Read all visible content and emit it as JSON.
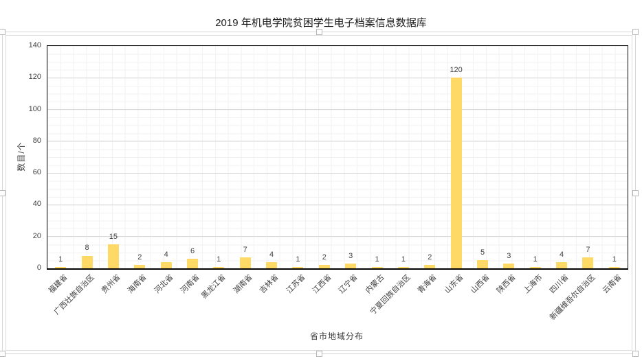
{
  "chart_data": {
    "type": "bar",
    "title": "2019 年机电学院贫困学生电子档案信息数据库",
    "xlabel": "省市地域分布",
    "ylabel": "数目/个",
    "categories": [
      "福建省",
      "广西壮族自治区",
      "贵州省",
      "海南省",
      "河北省",
      "河南省",
      "黑龙江省",
      "湖南省",
      "吉林省",
      "江苏省",
      "江西省",
      "辽宁省",
      "内蒙古",
      "宁夏回族自治区",
      "青海省",
      "山东省",
      "山西省",
      "陕西省",
      "上海市",
      "四川省",
      "新疆维吾尔自治区",
      "云南省"
    ],
    "values": [
      1,
      8,
      15,
      2,
      4,
      6,
      1,
      7,
      4,
      1,
      2,
      3,
      1,
      1,
      2,
      120,
      5,
      3,
      1,
      4,
      7,
      1
    ],
    "data_labels": [
      1,
      8,
      15,
      2,
      4,
      6,
      1,
      7,
      4,
      1,
      2,
      3,
      1,
      1,
      2,
      120,
      5,
      3,
      1,
      4,
      7,
      1
    ],
    "ylim": [
      0,
      140
    ],
    "ytick_interval": 20,
    "yminor_interval": 5,
    "grid": "major horizontal + faint minor grid",
    "legend_position": "none",
    "bar_color": "#FFD966",
    "major_gridline_color": "#d9d9d9",
    "minor_gridline_color": "#f2f2f2"
  },
  "selection": {
    "state": "chart object selected",
    "handle_count": 8
  }
}
